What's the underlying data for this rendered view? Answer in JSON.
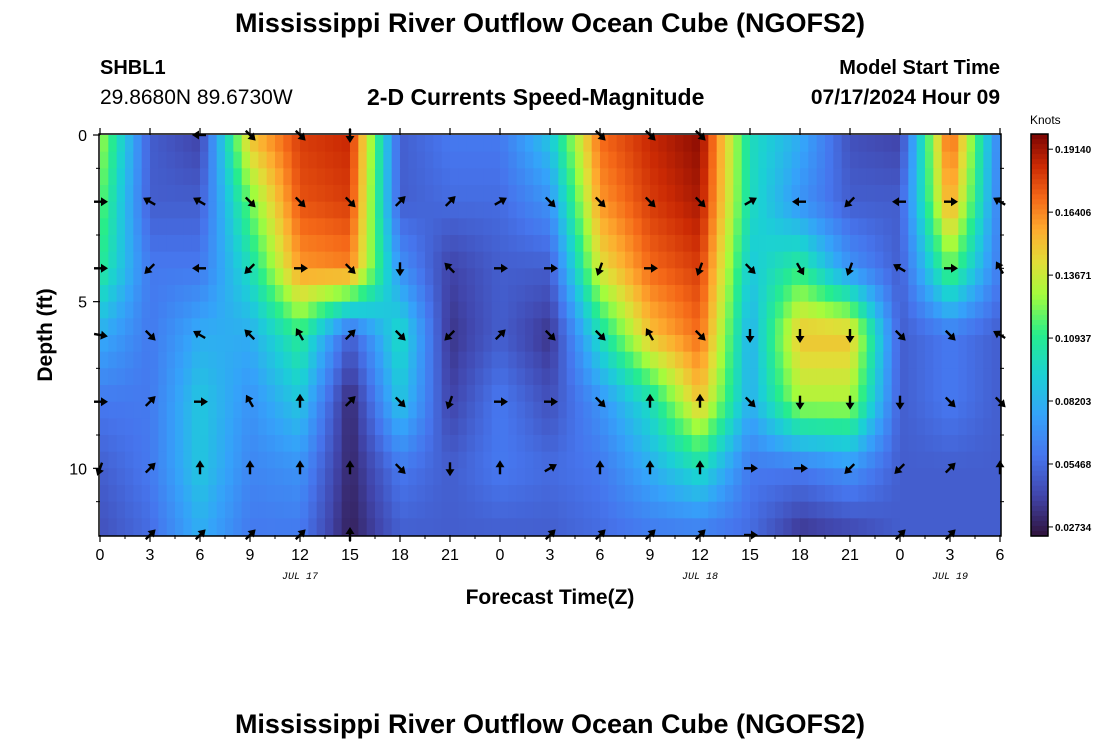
{
  "header": {
    "title": "Mississippi River Outflow Ocean Cube (NGOFS2)",
    "station_id": "SHBL1",
    "coordinates": "29.8680N  89.6730W",
    "subtitle": "2-D Currents Speed-Magnitude",
    "model_start_label": "Model Start Time",
    "model_start_value": "07/17/2024 Hour 09"
  },
  "footer": {
    "title": "Mississippi River Outflow Ocean Cube (NGOFS2)"
  },
  "chart_data": {
    "type": "heatmap",
    "xlabel": "Forecast Time(Z)",
    "ylabel": "Depth (ft)",
    "x_range_hours": [
      0,
      54
    ],
    "y_range_ft": [
      0,
      12
    ],
    "x_ticks": [
      "0",
      "3",
      "6",
      "9",
      "12",
      "15",
      "18",
      "21",
      "0",
      "3",
      "6",
      "9",
      "12",
      "15",
      "18",
      "21",
      "0",
      "3",
      "6"
    ],
    "y_ticks": [
      "0",
      "5",
      "10"
    ],
    "date_labels": [
      {
        "label": "JUL 17",
        "hour": 12
      },
      {
        "label": "JUL 18",
        "hour": 36
      },
      {
        "label": "JUL 19",
        "hour": 51
      }
    ],
    "colorbar": {
      "label": "Knots",
      "ticks": [
        "0.19140",
        "0.16406",
        "0.13671",
        "0.10937",
        "0.08203",
        "0.05468",
        "0.02734"
      ],
      "min": 0.0234,
      "max": 0.198
    },
    "depths_ft": [
      0,
      2,
      4,
      6,
      8,
      10,
      12
    ],
    "hours": [
      0,
      3,
      6,
      9,
      12,
      15,
      18,
      21,
      24,
      27,
      30,
      33,
      36,
      39,
      42,
      45,
      48,
      51,
      54
    ],
    "speed_knots": [
      [
        0.13,
        0.05,
        0.04,
        0.15,
        0.18,
        0.185,
        0.05,
        0.06,
        0.06,
        0.09,
        0.17,
        0.185,
        0.195,
        0.1,
        0.08,
        0.045,
        0.04,
        0.175,
        0.06
      ],
      [
        0.12,
        0.05,
        0.05,
        0.12,
        0.175,
        0.18,
        0.05,
        0.055,
        0.055,
        0.07,
        0.16,
        0.18,
        0.19,
        0.1,
        0.07,
        0.05,
        0.05,
        0.16,
        0.06
      ],
      [
        0.11,
        0.06,
        0.06,
        0.1,
        0.16,
        0.165,
        0.07,
        0.04,
        0.05,
        0.05,
        0.14,
        0.17,
        0.18,
        0.09,
        0.11,
        0.07,
        0.05,
        0.12,
        0.06
      ],
      [
        0.08,
        0.06,
        0.08,
        0.08,
        0.11,
        0.05,
        0.1,
        0.035,
        0.05,
        0.035,
        0.1,
        0.15,
        0.17,
        0.08,
        0.15,
        0.15,
        0.05,
        0.06,
        0.05
      ],
      [
        0.06,
        0.06,
        0.09,
        0.07,
        0.09,
        0.03,
        0.09,
        0.04,
        0.06,
        0.045,
        0.07,
        0.1,
        0.15,
        0.08,
        0.13,
        0.13,
        0.05,
        0.06,
        0.05
      ],
      [
        0.05,
        0.06,
        0.09,
        0.065,
        0.07,
        0.03,
        0.06,
        0.05,
        0.06,
        0.055,
        0.06,
        0.08,
        0.1,
        0.06,
        0.06,
        0.07,
        0.05,
        0.05,
        0.05
      ],
      [
        0.045,
        0.055,
        0.08,
        0.06,
        0.06,
        0.028,
        0.05,
        0.05,
        0.05,
        0.05,
        0.055,
        0.06,
        0.06,
        0.055,
        0.035,
        0.04,
        0.05,
        0.05,
        0.05
      ]
    ],
    "vector_hours": [
      0,
      3,
      6,
      9,
      12,
      15,
      18,
      21,
      24,
      27,
      30,
      33,
      36,
      39,
      42,
      45,
      48,
      51,
      54
    ],
    "vector_depths_ft": [
      0,
      2,
      4,
      6,
      8,
      10,
      12
    ],
    "direction_deg": [
      [
        null,
        null,
        270,
        135,
        135,
        180,
        null,
        null,
        null,
        null,
        135,
        135,
        135,
        null,
        null,
        null,
        null,
        null,
        null
      ],
      [
        90,
        300,
        300,
        135,
        135,
        135,
        45,
        45,
        60,
        135,
        135,
        135,
        135,
        60,
        270,
        225,
        270,
        90,
        300
      ],
      [
        90,
        225,
        270,
        225,
        90,
        135,
        180,
        315,
        90,
        90,
        200,
        90,
        200,
        135,
        150,
        200,
        300,
        90,
        330
      ],
      [
        100,
        135,
        300,
        315,
        330,
        45,
        135,
        225,
        45,
        135,
        135,
        330,
        135,
        180,
        180,
        180,
        135,
        135,
        300
      ],
      [
        90,
        45,
        90,
        330,
        0,
        45,
        135,
        200,
        90,
        90,
        135,
        0,
        0,
        135,
        180,
        180,
        180,
        135,
        135
      ],
      [
        200,
        45,
        0,
        0,
        0,
        0,
        135,
        180,
        0,
        60,
        0,
        0,
        0,
        90,
        90,
        225,
        225,
        45,
        0
      ],
      [
        null,
        45,
        45,
        45,
        45,
        0,
        null,
        null,
        null,
        45,
        45,
        45,
        45,
        90,
        null,
        null,
        45,
        45,
        null
      ]
    ]
  }
}
